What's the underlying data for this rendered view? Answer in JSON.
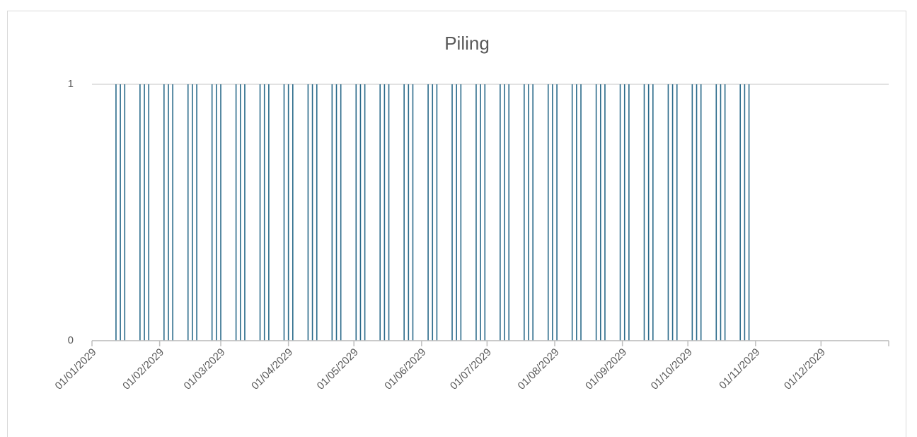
{
  "chart_data": {
    "type": "bar",
    "title": "Piling",
    "x": [
      "2029-01-12",
      "2029-01-14",
      "2029-01-16",
      "2029-01-23",
      "2029-01-25",
      "2029-01-27",
      "2029-02-03",
      "2029-02-05",
      "2029-02-07",
      "2029-02-14",
      "2029-02-16",
      "2029-02-18",
      "2029-02-25",
      "2029-02-27",
      "2029-03-01",
      "2029-03-08",
      "2029-03-10",
      "2029-03-12",
      "2029-03-19",
      "2029-03-21",
      "2029-03-23",
      "2029-03-30",
      "2029-04-01",
      "2029-04-03",
      "2029-04-10",
      "2029-04-12",
      "2029-04-14",
      "2029-04-21",
      "2029-04-23",
      "2029-04-25",
      "2029-05-02",
      "2029-05-04",
      "2029-05-06",
      "2029-05-13",
      "2029-05-15",
      "2029-05-17",
      "2029-05-24",
      "2029-05-26",
      "2029-05-28",
      "2029-06-04",
      "2029-06-06",
      "2029-06-08",
      "2029-06-15",
      "2029-06-17",
      "2029-06-19",
      "2029-06-26",
      "2029-06-28",
      "2029-06-30",
      "2029-07-07",
      "2029-07-09",
      "2029-07-11",
      "2029-07-18",
      "2029-07-20",
      "2029-07-22",
      "2029-07-29",
      "2029-07-31",
      "2029-08-02",
      "2029-08-09",
      "2029-08-11",
      "2029-08-13",
      "2029-08-20",
      "2029-08-22",
      "2029-08-24",
      "2029-08-31",
      "2029-09-02",
      "2029-09-04",
      "2029-09-11",
      "2029-09-13",
      "2029-09-15",
      "2029-09-22",
      "2029-09-24",
      "2029-09-26",
      "2029-10-03",
      "2029-10-05",
      "2029-10-07",
      "2029-10-14",
      "2029-10-16",
      "2029-10-18",
      "2029-10-25",
      "2029-10-27",
      "2029-10-29"
    ],
    "values": [
      1,
      1,
      1,
      1,
      1,
      1,
      1,
      1,
      1,
      1,
      1,
      1,
      1,
      1,
      1,
      1,
      1,
      1,
      1,
      1,
      1,
      1,
      1,
      1,
      1,
      1,
      1,
      1,
      1,
      1,
      1,
      1,
      1,
      1,
      1,
      1,
      1,
      1,
      1,
      1,
      1,
      1,
      1,
      1,
      1,
      1,
      1,
      1,
      1,
      1,
      1,
      1,
      1,
      1,
      1,
      1,
      1,
      1,
      1,
      1,
      1,
      1,
      1,
      1,
      1,
      1,
      1,
      1,
      1,
      1,
      1,
      1,
      1,
      1,
      1,
      1,
      1,
      1,
      1,
      1,
      1
    ],
    "color": "#2a6a8a",
    "xlim": [
      "2029-01-01",
      "2030-01-01"
    ],
    "xticks": [
      {
        "value": "2029-01-01",
        "label": "01/01/2029"
      },
      {
        "value": "2029-02-01",
        "label": "01/02/2029"
      },
      {
        "value": "2029-03-01",
        "label": "01/03/2029"
      },
      {
        "value": "2029-04-01",
        "label": "01/04/2029"
      },
      {
        "value": "2029-05-01",
        "label": "01/05/2029"
      },
      {
        "value": "2029-06-01",
        "label": "01/06/2029"
      },
      {
        "value": "2029-07-01",
        "label": "01/07/2029"
      },
      {
        "value": "2029-08-01",
        "label": "01/08/2029"
      },
      {
        "value": "2029-09-01",
        "label": "01/09/2029"
      },
      {
        "value": "2029-10-01",
        "label": "01/10/2029"
      },
      {
        "value": "2029-11-01",
        "label": "01/11/2029"
      },
      {
        "value": "2029-12-01",
        "label": "01/12/2029"
      }
    ],
    "ylim": [
      0,
      1
    ],
    "yticks": [
      0,
      1
    ],
    "grid": true
  }
}
